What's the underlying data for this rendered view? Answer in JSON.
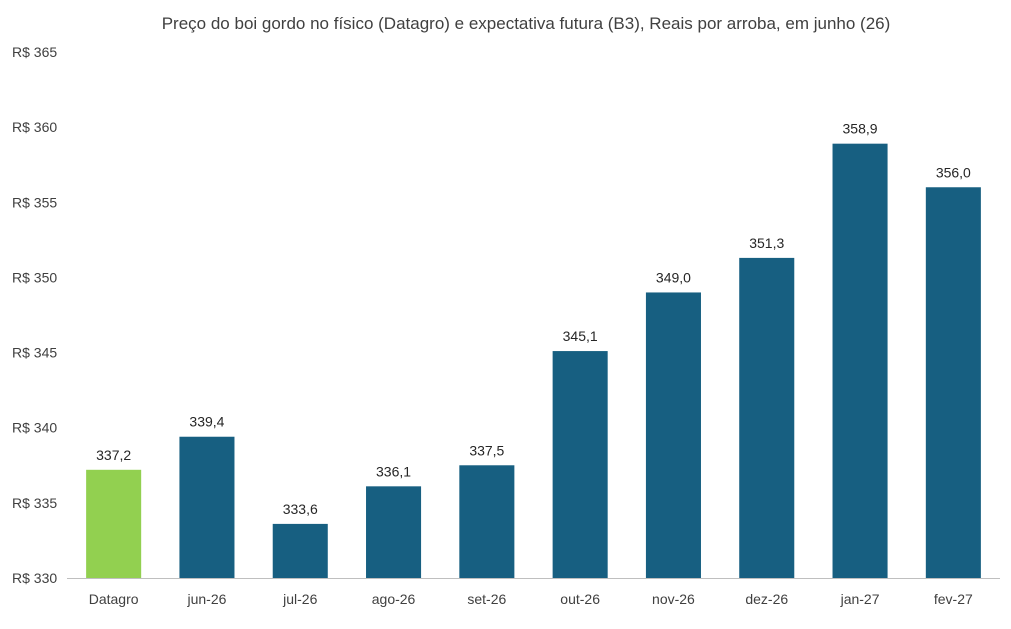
{
  "chart_data": {
    "type": "bar",
    "title": "Preço do boi gordo no físico (Datagro)  e expectativa futura (B3), Reais por arroba, em junho (26)",
    "categories": [
      "Datagro",
      "jun-26",
      "jul-26",
      "ago-26",
      "set-26",
      "out-26",
      "nov-26",
      "dez-26",
      "jan-27",
      "fev-27"
    ],
    "values": [
      337.2,
      339.4,
      333.6,
      336.1,
      337.5,
      345.1,
      349.0,
      351.3,
      358.9,
      356.0
    ],
    "data_labels": [
      "337,2",
      "339,4",
      "333,6",
      "336,1",
      "337,5",
      "345,1",
      "349,0",
      "351,3",
      "358,9",
      "356,0"
    ],
    "ylim": [
      330,
      365
    ],
    "yticks": [
      330,
      335,
      340,
      345,
      350,
      355,
      360,
      365
    ],
    "ytick_labels": [
      "R$ 330",
      "R$ 335",
      "R$ 340",
      "R$ 345",
      "R$ 350",
      "R$ 355",
      "R$ 360",
      "R$ 365"
    ],
    "xlabel": "",
    "ylabel": "",
    "grid": false,
    "legend": false,
    "colors": {
      "highlight": "#92d050",
      "bars": "#175f81",
      "axis": "#bfbfbf",
      "text": "#404040"
    }
  }
}
